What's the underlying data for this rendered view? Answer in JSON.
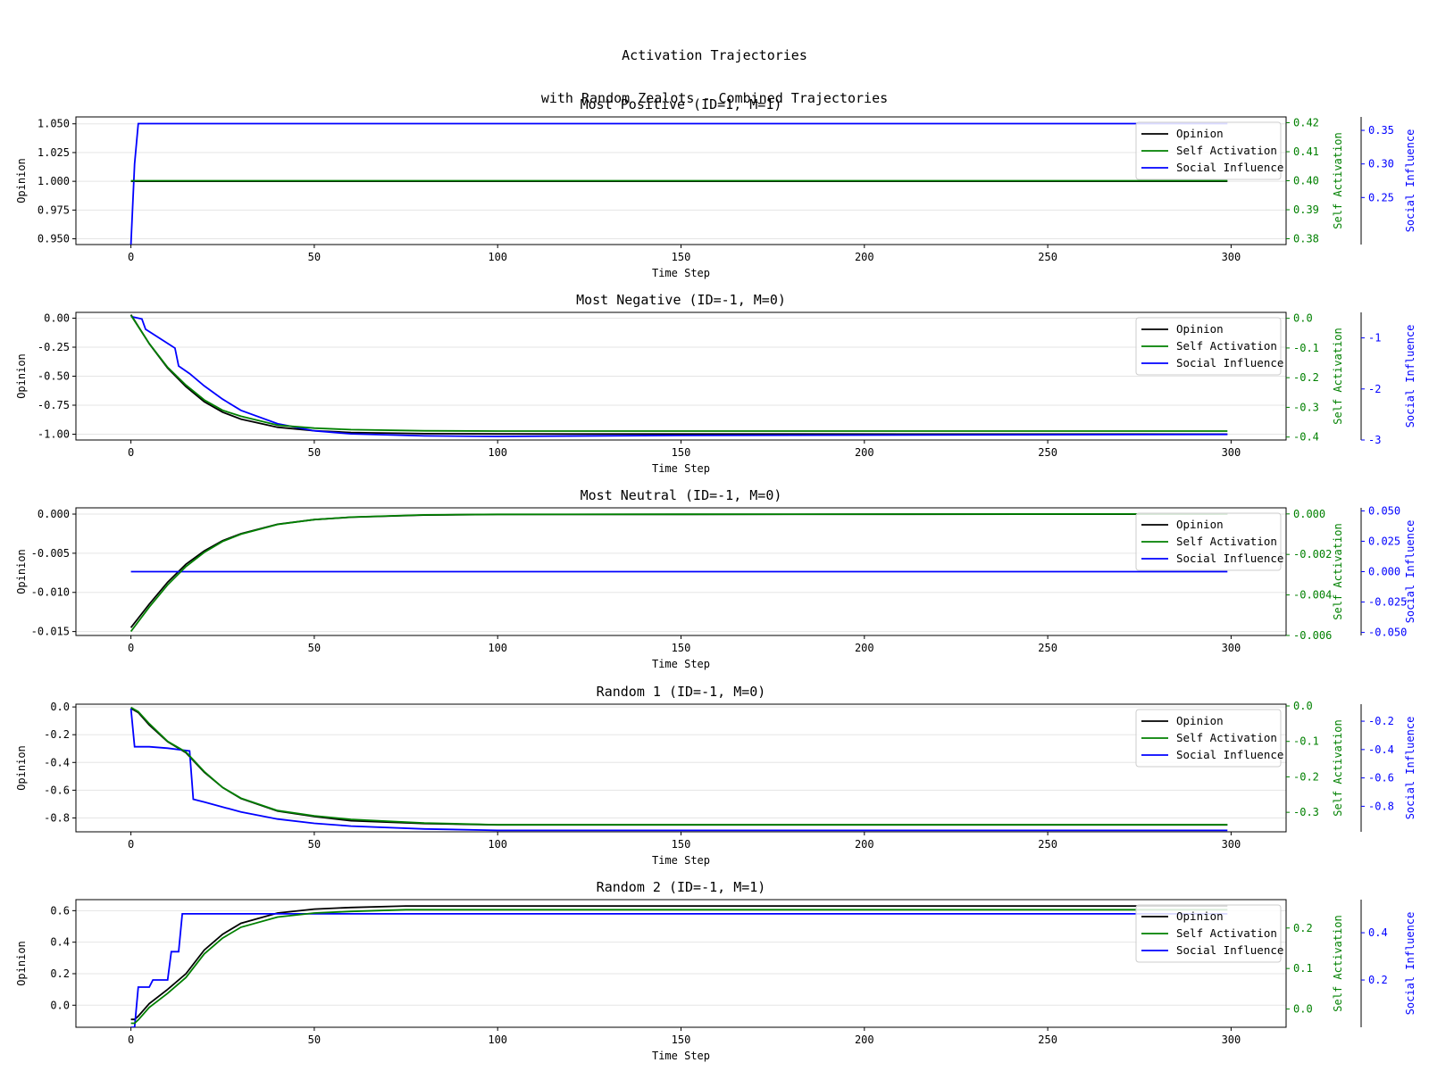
{
  "figure": {
    "title_line1": "Activation Trajectories",
    "title_line2": "with Random Zealots - Combined Trajectories"
  },
  "colors": {
    "opinion": "#000000",
    "self_activation": "#008000",
    "social_influence": "#0000ff",
    "grid": "#e5e5e5"
  },
  "chart_data": [
    {
      "type": "line",
      "title": "Most Positive (ID=1, M=1)",
      "xlabel": "Time Step",
      "ylabel": "Opinion",
      "ylabel_self": "Self Activation",
      "ylabel_social": "Social Influence",
      "xlim": [
        -15,
        315
      ],
      "xticks": [
        0,
        50,
        100,
        150,
        200,
        250,
        300
      ],
      "ylim": [
        0.945,
        1.056
      ],
      "yticks": [
        "0.950",
        "0.975",
        "1.000",
        "1.025",
        "1.050"
      ],
      "ylim_self": [
        0.378,
        0.422
      ],
      "yticks_self": [
        "0.38",
        "0.39",
        "0.40",
        "0.41",
        "0.42"
      ],
      "ylim_social": [
        0.18,
        0.37
      ],
      "yticks_social": [
        "0.25",
        "0.30",
        "0.35"
      ],
      "legend": [
        "Opinion",
        "Self Activation",
        "Social Influence"
      ],
      "legend_position": "upper right",
      "series": [
        {
          "name": "Opinion",
          "axis": "opinion",
          "x": [
            0,
            299
          ],
          "y": [
            1.0,
            1.0
          ]
        },
        {
          "name": "Self Activation",
          "axis": "self",
          "x": [
            0,
            299
          ],
          "y": [
            0.4,
            0.4
          ]
        },
        {
          "name": "Social Influence",
          "axis": "social",
          "x": [
            0,
            1,
            2,
            299
          ],
          "y": [
            0.18,
            0.3,
            0.36,
            0.36
          ]
        }
      ]
    },
    {
      "type": "line",
      "title": "Most Negative (ID=-1, M=0)",
      "xlabel": "Time Step",
      "ylabel": "Opinion",
      "ylabel_self": "Self Activation",
      "ylabel_social": "Social Influence",
      "xlim": [
        -15,
        315
      ],
      "xticks": [
        0,
        50,
        100,
        150,
        200,
        250,
        300
      ],
      "ylim": [
        -1.05,
        0.05
      ],
      "yticks": [
        "0.00",
        "-0.25",
        "-0.50",
        "-0.75",
        "-1.00"
      ],
      "ylim_self": [
        -0.41,
        0.02
      ],
      "yticks_self": [
        "0.0",
        "-0.1",
        "-0.2",
        "-0.3",
        "-0.4"
      ],
      "ylim_social": [
        -3.0,
        -0.5
      ],
      "yticks_social": [
        "-1",
        "-2",
        "-3"
      ],
      "legend": [
        "Opinion",
        "Self Activation",
        "Social Influence"
      ],
      "legend_position": "upper right",
      "series": [
        {
          "name": "Opinion",
          "axis": "opinion",
          "x": [
            0,
            5,
            10,
            15,
            20,
            25,
            30,
            40,
            50,
            60,
            80,
            100,
            299
          ],
          "y": [
            0.03,
            -0.22,
            -0.43,
            -0.59,
            -0.72,
            -0.81,
            -0.87,
            -0.94,
            -0.97,
            -0.985,
            -0.995,
            -0.998,
            -1.0
          ]
        },
        {
          "name": "Self Activation",
          "axis": "self",
          "x": [
            0,
            5,
            10,
            15,
            20,
            25,
            30,
            40,
            50,
            60,
            80,
            100,
            299
          ],
          "y": [
            0.01,
            -0.085,
            -0.165,
            -0.225,
            -0.275,
            -0.31,
            -0.33,
            -0.36,
            -0.37,
            -0.375,
            -0.379,
            -0.38,
            -0.38
          ]
        },
        {
          "name": "Social Influence",
          "axis": "social",
          "x": [
            0,
            3,
            4,
            12,
            13,
            16,
            20,
            25,
            30,
            40,
            50,
            60,
            80,
            100,
            150,
            299
          ],
          "y": [
            -0.58,
            -0.63,
            -0.83,
            -1.2,
            -1.55,
            -1.7,
            -1.94,
            -2.2,
            -2.42,
            -2.68,
            -2.82,
            -2.88,
            -2.92,
            -2.93,
            -2.91,
            -2.89
          ]
        }
      ]
    },
    {
      "type": "line",
      "title": "Most Neutral (ID=-1, M=0)",
      "xlabel": "Time Step",
      "ylabel": "Opinion",
      "ylabel_self": "Self Activation",
      "ylabel_social": "Social Influence",
      "xlim": [
        -15,
        315
      ],
      "xticks": [
        0,
        50,
        100,
        150,
        200,
        250,
        300
      ],
      "ylim": [
        -0.0155,
        0.0008
      ],
      "yticks": [
        "0.000",
        "-0.005",
        "-0.010",
        "-0.015"
      ],
      "ylim_self": [
        -0.006,
        0.0003
      ],
      "yticks_self": [
        "0.000",
        "-0.002",
        "-0.004",
        "-0.006"
      ],
      "ylim_social": [
        -0.0525,
        0.0525
      ],
      "yticks_social": [
        "0.050",
        "0.025",
        "0.000",
        "-0.025",
        "-0.050"
      ],
      "legend": [
        "Opinion",
        "Self Activation",
        "Social Influence"
      ],
      "legend_position": "upper right",
      "series": [
        {
          "name": "Opinion",
          "axis": "opinion",
          "x": [
            0,
            5,
            10,
            15,
            20,
            25,
            30,
            40,
            50,
            60,
            80,
            100,
            299
          ],
          "y": [
            -0.0145,
            -0.0115,
            -0.0087,
            -0.0064,
            -0.0047,
            -0.0034,
            -0.0025,
            -0.0013,
            -0.0007,
            -0.0004,
            -0.00012,
            -4e-05,
            0.0
          ]
        },
        {
          "name": "Self Activation",
          "axis": "self",
          "x": [
            0,
            5,
            10,
            15,
            20,
            25,
            30,
            40,
            50,
            60,
            80,
            100,
            299
          ],
          "y": [
            -0.0058,
            -0.0046,
            -0.0035,
            -0.0026,
            -0.0019,
            -0.00136,
            -0.001,
            -0.00052,
            -0.00028,
            -0.00016,
            -5e-05,
            -2e-05,
            0.0
          ]
        },
        {
          "name": "Social Influence",
          "axis": "social",
          "x": [
            0,
            299
          ],
          "y": [
            0.0,
            0.0
          ]
        }
      ]
    },
    {
      "type": "line",
      "title": "Random 1 (ID=-1, M=0)",
      "xlabel": "Time Step",
      "ylabel": "Opinion",
      "ylabel_self": "Self Activation",
      "ylabel_social": "Social Influence",
      "xlim": [
        -15,
        315
      ],
      "xticks": [
        0,
        50,
        100,
        150,
        200,
        250,
        300
      ],
      "ylim": [
        -0.9,
        0.02
      ],
      "yticks": [
        "0.0",
        "-0.2",
        "-0.4",
        "-0.6",
        "-0.8"
      ],
      "ylim_self": [
        -0.355,
        0.005
      ],
      "yticks_self": [
        "0.0",
        "-0.1",
        "-0.2",
        "-0.3"
      ],
      "ylim_social": [
        -0.98,
        -0.08
      ],
      "yticks_social": [
        "-0.2",
        "-0.4",
        "-0.6",
        "-0.8"
      ],
      "legend": [
        "Opinion",
        "Self Activation",
        "Social Influence"
      ],
      "legend_position": "upper right",
      "series": [
        {
          "name": "Opinion",
          "axis": "opinion",
          "x": [
            0,
            2,
            5,
            10,
            15,
            20,
            25,
            30,
            40,
            50,
            60,
            80,
            100,
            299
          ],
          "y": [
            -0.01,
            -0.04,
            -0.13,
            -0.25,
            -0.33,
            -0.47,
            -0.58,
            -0.66,
            -0.75,
            -0.79,
            -0.82,
            -0.84,
            -0.85,
            -0.85
          ]
        },
        {
          "name": "Self Activation",
          "axis": "self",
          "x": [
            0,
            2,
            5,
            10,
            15,
            20,
            25,
            30,
            40,
            50,
            60,
            80,
            100,
            299
          ],
          "y": [
            -0.004,
            -0.016,
            -0.05,
            -0.1,
            -0.13,
            -0.185,
            -0.23,
            -0.26,
            -0.295,
            -0.31,
            -0.32,
            -0.33,
            -0.335,
            -0.335
          ]
        },
        {
          "name": "Social Influence",
          "axis": "social",
          "x": [
            0,
            1,
            5,
            10,
            16,
            17,
            20,
            30,
            40,
            50,
            60,
            80,
            100,
            299
          ],
          "y": [
            -0.11,
            -0.38,
            -0.38,
            -0.39,
            -0.41,
            -0.75,
            -0.77,
            -0.84,
            -0.89,
            -0.92,
            -0.94,
            -0.96,
            -0.97,
            -0.97
          ]
        }
      ]
    },
    {
      "type": "line",
      "title": "Random 2 (ID=-1, M=1)",
      "xlabel": "Time Step",
      "ylabel": "Opinion",
      "ylabel_self": "Self Activation",
      "ylabel_social": "Social Influence",
      "xlim": [
        -15,
        315
      ],
      "xticks": [
        0,
        50,
        100,
        150,
        200,
        250,
        300
      ],
      "ylim": [
        -0.14,
        0.67
      ],
      "yticks": [
        "0.0",
        "0.2",
        "0.4",
        "0.6"
      ],
      "ylim_self": [
        -0.045,
        0.27
      ],
      "yticks_self": [
        "0.0",
        "0.1",
        "0.2"
      ],
      "ylim_social": [
        0.0,
        0.54
      ],
      "yticks_social": [
        "0.2",
        "0.4"
      ],
      "legend": [
        "Opinion",
        "Self Activation",
        "Social Influence"
      ],
      "legend_position": "upper right",
      "series": [
        {
          "name": "Opinion",
          "axis": "opinion",
          "x": [
            0,
            1,
            2,
            5,
            10,
            15,
            20,
            25,
            30,
            40,
            50,
            60,
            75,
            100,
            299
          ],
          "y": [
            -0.09,
            -0.09,
            -0.07,
            0.01,
            0.1,
            0.2,
            0.35,
            0.45,
            0.52,
            0.585,
            0.61,
            0.62,
            0.63,
            0.63,
            0.63
          ]
        },
        {
          "name": "Self Activation",
          "axis": "self",
          "x": [
            0,
            1,
            2,
            5,
            10,
            15,
            20,
            25,
            30,
            40,
            50,
            60,
            75,
            100,
            299
          ],
          "y": [
            -0.035,
            -0.035,
            -0.027,
            0.004,
            0.039,
            0.078,
            0.136,
            0.175,
            0.202,
            0.227,
            0.237,
            0.241,
            0.245,
            0.245,
            0.245
          ]
        },
        {
          "name": "Social Influence",
          "axis": "social",
          "x": [
            0,
            1,
            2,
            5,
            6,
            10,
            11,
            13,
            14,
            299
          ],
          "y": [
            0.0,
            0.0,
            0.17,
            0.17,
            0.2,
            0.2,
            0.32,
            0.32,
            0.48,
            0.48
          ]
        }
      ]
    }
  ]
}
